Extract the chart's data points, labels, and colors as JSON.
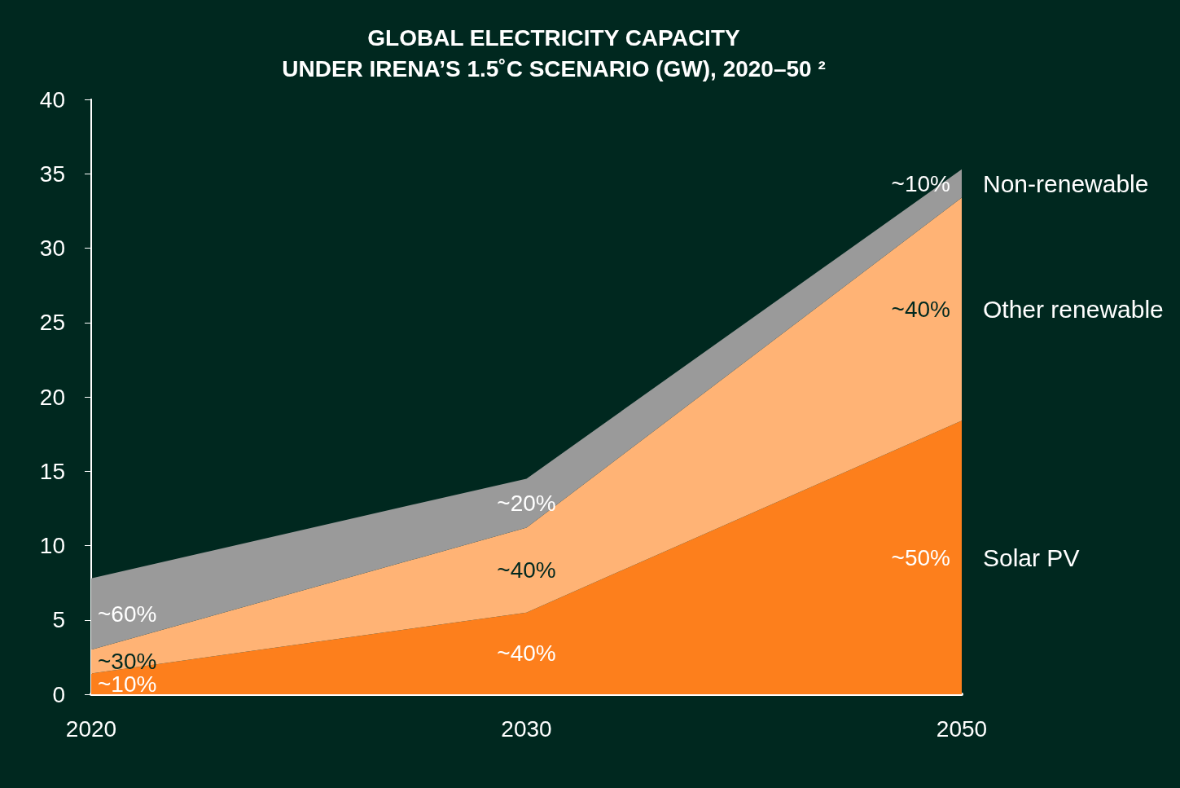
{
  "chart_data": {
    "type": "area",
    "title": "GLOBAL ELECTRICITY CAPACITY\nUNDER IRENA’S 1.5˚C SCENARIO (GW), 2020–50 ²",
    "categories": [
      "2020",
      "2030",
      "2050"
    ],
    "stacked": true,
    "ylim": [
      0,
      40
    ],
    "yticks": [
      0,
      5,
      10,
      15,
      20,
      25,
      30,
      35,
      40
    ],
    "grid": false,
    "legend": "right",
    "series": [
      {
        "name": "Solar PV",
        "color": "#fd7f1c",
        "values": [
          1.4,
          5.5,
          18.4
        ]
      },
      {
        "name": "Other renewable",
        "color": "#ffb375",
        "values": [
          1.6,
          5.7,
          15.0
        ]
      },
      {
        "name": "Non-renewable",
        "color": "#9a9a9a",
        "values": [
          4.8,
          3.3,
          1.9
        ]
      }
    ],
    "annotations": [
      "~10%",
      "~30%",
      "~60%",
      "~40%",
      "~40%",
      "~20%",
      "~50%",
      "~40%",
      "~10%"
    ]
  }
}
